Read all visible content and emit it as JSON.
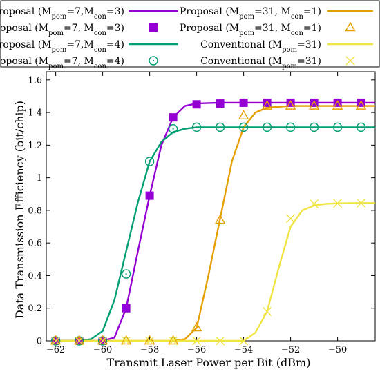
{
  "chart_data": {
    "type": "line",
    "xlabel": "Transmit Laser Power per Bit (dBm)",
    "ylabel": "Data Transmission Efficiency (bit/chip)",
    "xlim": [
      -62.4,
      -48.4
    ],
    "ylim": [
      0,
      1.65
    ],
    "xticks": [
      -62,
      -60,
      -58,
      -56,
      -54,
      -52,
      -50
    ],
    "xtick_labels": [
      "−62",
      "−60",
      "−58",
      "−56",
      "−54",
      "−52",
      "−50"
    ],
    "yticks": [
      0,
      0.2,
      0.4,
      0.6,
      0.8,
      1,
      1.2,
      1.4,
      1.6
    ],
    "ytick_labels": [
      "0",
      "0.2",
      "0.4",
      "0.6",
      "0.8",
      "1",
      "1.2",
      "1.4",
      "1.6"
    ],
    "grid": false,
    "legend_position": "top (above plot, 2 columns, boxed)",
    "series": [
      {
        "legend": {
          "pre": "Proposal (M",
          "s1": "pom",
          "mid": "=7,M",
          "s2": "con",
          "post": "=3)"
        },
        "color": "#9400D3",
        "kind": "line",
        "x": [
          -62,
          -61,
          -60,
          -59.5,
          -59,
          -58.5,
          -58,
          -57.5,
          -57,
          -56.5,
          -56,
          -55.5,
          -55,
          -54,
          -53,
          -52,
          -51,
          -50,
          -49,
          -48.4
        ],
        "y": [
          0,
          0,
          0,
          0.02,
          0.2,
          0.55,
          0.89,
          1.2,
          1.37,
          1.44,
          1.455,
          1.458,
          1.46,
          1.46,
          1.46,
          1.46,
          1.46,
          1.46,
          1.46,
          1.46
        ]
      },
      {
        "legend": {
          "pre": "Proposal (M",
          "s1": "pom",
          "mid": "=7, M",
          "s2": "con",
          "post": "=3)"
        },
        "color": "#9400D3",
        "kind": "marker",
        "marker": "square",
        "x": [
          -62,
          -61,
          -60,
          -59,
          -58,
          -57,
          -56,
          -55,
          -54,
          -53,
          -52,
          -51,
          -50,
          -49
        ],
        "y": [
          0,
          0,
          0,
          0.2,
          0.89,
          1.37,
          1.45,
          1.455,
          1.46,
          1.46,
          1.46,
          1.46,
          1.46,
          1.46
        ]
      },
      {
        "legend": {
          "pre": "Proposal (M",
          "s1": "pom",
          "mid": "=7,M",
          "s2": "con",
          "post": "=4)"
        },
        "color": "#009E73",
        "kind": "line",
        "x": [
          -62,
          -61,
          -60.5,
          -60,
          -59.5,
          -59,
          -58.5,
          -58,
          -57.5,
          -57,
          -56.5,
          -56,
          -55.5,
          -55,
          -54,
          -53,
          -52,
          -51,
          -50,
          -49,
          -48.4
        ],
        "y": [
          0,
          0,
          0.01,
          0.06,
          0.25,
          0.55,
          0.85,
          1.1,
          1.22,
          1.28,
          1.3,
          1.31,
          1.31,
          1.31,
          1.31,
          1.31,
          1.31,
          1.31,
          1.31,
          1.31,
          1.31
        ]
      },
      {
        "legend": {
          "pre": "Proposal (M",
          "s1": "pom",
          "mid": "=7, M",
          "s2": "con",
          "post": "=4)"
        },
        "color": "#009E73",
        "kind": "marker",
        "marker": "circle-dot",
        "x": [
          -62,
          -61,
          -60,
          -59,
          -58,
          -57,
          -56,
          -55,
          -54,
          -53,
          -52,
          -51,
          -50,
          -49
        ],
        "y": [
          0,
          0,
          0,
          0.41,
          1.1,
          1.3,
          1.31,
          1.31,
          1.31,
          1.31,
          1.31,
          1.31,
          1.31,
          1.31
        ]
      },
      {
        "legend": {
          "pre": "Proposal (M",
          "s1": "pom",
          "mid": "=31, M",
          "s2": "con",
          "post": "=1)"
        },
        "color": "#E69F00",
        "kind": "line",
        "x": [
          -62,
          -58,
          -57,
          -56.5,
          -56,
          -55.5,
          -55,
          -54.5,
          -54,
          -53.5,
          -53,
          -52.5,
          -52,
          -51,
          -50,
          -49,
          -48.4
        ],
        "y": [
          0,
          0,
          0,
          0.01,
          0.08,
          0.4,
          0.75,
          1.1,
          1.31,
          1.4,
          1.43,
          1.435,
          1.44,
          1.44,
          1.44,
          1.44,
          1.44
        ]
      },
      {
        "legend": {
          "pre": "Proposal  (M",
          "s1": "pom",
          "mid": "=31, M",
          "s2": "con",
          "post": "=1)"
        },
        "color": "#E69F00",
        "kind": "marker",
        "marker": "triangle",
        "x": [
          -62,
          -61,
          -60,
          -59,
          -58,
          -57,
          -56,
          -55,
          -54,
          -53,
          -52,
          -51,
          -50,
          -49
        ],
        "y": [
          0,
          0,
          0,
          0,
          0,
          0,
          0.08,
          0.74,
          1.38,
          1.44,
          1.44,
          1.44,
          1.44,
          1.44
        ]
      },
      {
        "legend": {
          "pre": "Conventional (M",
          "s1": "pom",
          "mid": "=31)",
          "s2": "",
          "post": ""
        },
        "color": "#F0E442",
        "kind": "line",
        "x": [
          -62,
          -54,
          -53.5,
          -53,
          -52.5,
          -52,
          -51.5,
          -51,
          -50.5,
          -50,
          -49,
          -48.4
        ],
        "y": [
          0,
          0,
          0.05,
          0.18,
          0.45,
          0.7,
          0.8,
          0.83,
          0.84,
          0.843,
          0.845,
          0.845
        ]
      },
      {
        "legend": {
          "pre": "Conventional (M",
          "s1": "pom",
          "mid": "=31)",
          "s2": "",
          "post": ""
        },
        "color": "#F0E442",
        "kind": "marker",
        "marker": "cross",
        "x": [
          -62,
          -61,
          -60,
          -59,
          -58,
          -57,
          -56,
          -55,
          -54,
          -53,
          -52,
          -51,
          -50,
          -49
        ],
        "y": [
          0,
          0,
          0,
          0,
          0,
          0,
          0,
          0,
          0,
          0.18,
          0.75,
          0.84,
          0.843,
          0.845
        ]
      }
    ]
  }
}
